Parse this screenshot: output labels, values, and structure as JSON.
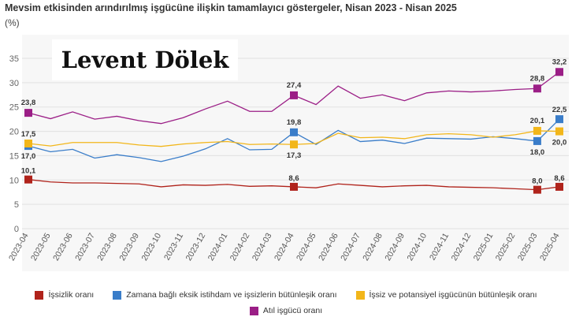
{
  "header": {
    "title": "Mevsim etkisinden arındırılmış işgücüne ilişkin tamamlayıcı göstergeler, Nisan 2023 - Nisan 2025",
    "unit": "(%)"
  },
  "watermark": {
    "text": "Levent Dölek"
  },
  "chart_data": {
    "type": "line",
    "title": "Mevsim etkisinden arındırılmış işgücüne ilişkin tamamlayıcı göstergeler, Nisan 2023 - Nisan 2025",
    "ylabel": "(%)",
    "ylim": [
      0,
      35
    ],
    "yticks": [
      0,
      5,
      10,
      15,
      20,
      25,
      30,
      35
    ],
    "grid": true,
    "legend_position": "bottom",
    "categories": [
      "2023-04",
      "2023-05",
      "2023-06",
      "2023-07",
      "2023-08",
      "2023-09",
      "2023-10",
      "2023-11",
      "2023-12",
      "2024-01",
      "2024-02",
      "2024-03",
      "2024-04",
      "2024-05",
      "2024-06",
      "2024-07",
      "2024-08",
      "2024-09",
      "2024-10",
      "2024-11",
      "2024-12",
      "2025-01",
      "2025-02",
      "2025-03",
      "2025-04"
    ],
    "series": [
      {
        "name": "İşsizlik oranı",
        "color": "#b0231b",
        "values": [
          10.1,
          9.6,
          9.4,
          9.4,
          9.3,
          9.2,
          8.6,
          9.0,
          8.9,
          9.1,
          8.7,
          8.8,
          8.6,
          8.4,
          9.2,
          8.9,
          8.6,
          8.8,
          8.9,
          8.6,
          8.5,
          8.4,
          8.2,
          8.0,
          8.6
        ],
        "labels": [
          {
            "i": 0,
            "text": "10,1"
          },
          {
            "i": 12,
            "text": "8,6"
          },
          {
            "i": 23,
            "text": "8,0"
          },
          {
            "i": 24,
            "text": "8,6"
          }
        ]
      },
      {
        "name": "Zamana bağlı eksik istihdam ve işsizlerin bütünleşik oranı",
        "color": "#3a7dc9",
        "values": [
          17.0,
          15.8,
          16.3,
          14.5,
          15.2,
          14.6,
          13.8,
          14.9,
          16.4,
          18.5,
          16.2,
          16.3,
          19.8,
          17.3,
          20.2,
          17.9,
          18.2,
          17.5,
          18.6,
          18.5,
          18.4,
          18.9,
          18.5,
          18.0,
          22.5
        ],
        "labels": [
          {
            "i": 0,
            "text": "17,0"
          },
          {
            "i": 12,
            "text": "19,8"
          },
          {
            "i": 23,
            "text": "18,0"
          },
          {
            "i": 24,
            "text": "22,5"
          }
        ]
      },
      {
        "name": "İşsiz ve potansiyel işgücünün bütünleşik oranı",
        "color": "#f2b61a",
        "values": [
          17.5,
          17.0,
          17.7,
          17.7,
          17.7,
          17.2,
          16.9,
          17.4,
          17.7,
          17.9,
          17.3,
          17.4,
          17.3,
          17.5,
          19.6,
          18.7,
          18.8,
          18.5,
          19.3,
          19.5,
          19.3,
          18.8,
          19.3,
          20.1,
          20.0
        ],
        "labels": [
          {
            "i": 0,
            "text": "17,5"
          },
          {
            "i": 12,
            "text": "17,3"
          },
          {
            "i": 23,
            "text": "20,1"
          },
          {
            "i": 24,
            "text": "20,0"
          }
        ]
      },
      {
        "name": "Atıl işgücü oranı",
        "color": "#9b1e86",
        "values": [
          23.8,
          22.6,
          24.0,
          22.5,
          23.1,
          22.2,
          21.6,
          22.8,
          24.6,
          26.2,
          24.1,
          24.1,
          27.4,
          25.5,
          29.3,
          26.8,
          27.5,
          26.3,
          27.9,
          28.3,
          28.1,
          28.3,
          28.6,
          28.8,
          32.2
        ],
        "labels": [
          {
            "i": 0,
            "text": "23,8"
          },
          {
            "i": 12,
            "text": "27,4"
          },
          {
            "i": 23,
            "text": "28,8"
          },
          {
            "i": 24,
            "text": "32,2"
          }
        ]
      }
    ]
  }
}
